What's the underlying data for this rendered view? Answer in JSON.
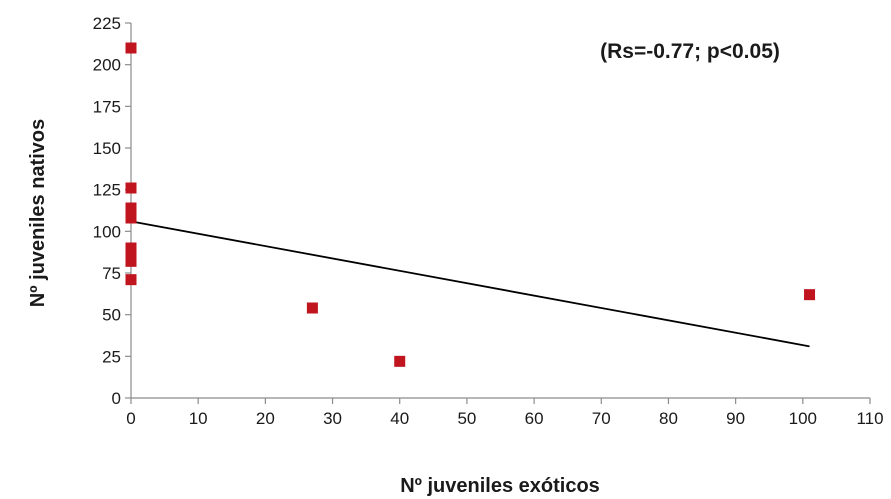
{
  "chart_data": {
    "type": "scatter",
    "title": "",
    "xlabel": "Nº juveniles exóticos",
    "ylabel": "Nº juveniles nativos",
    "xlim": [
      0,
      110
    ],
    "ylim": [
      0,
      225
    ],
    "x_ticks": [
      0,
      10,
      20,
      30,
      40,
      50,
      60,
      70,
      80,
      90,
      100,
      110
    ],
    "y_ticks": [
      0,
      25,
      50,
      75,
      100,
      125,
      150,
      175,
      200,
      225
    ],
    "grid": false,
    "legend": "none",
    "annotation": "(Rs=-0.77; p<0.05)",
    "series": [
      {
        "marker": "square",
        "color": "#c0141e",
        "points": [
          {
            "x": 0,
            "y": 210
          },
          {
            "x": 0,
            "y": 126
          },
          {
            "x": 0,
            "y": 114
          },
          {
            "x": 0,
            "y": 111
          },
          {
            "x": 0,
            "y": 108
          },
          {
            "x": 0,
            "y": 90
          },
          {
            "x": 0,
            "y": 86
          },
          {
            "x": 0,
            "y": 82
          },
          {
            "x": 0,
            "y": 71
          },
          {
            "x": 27,
            "y": 54
          },
          {
            "x": 40,
            "y": 22
          },
          {
            "x": 101,
            "y": 62
          }
        ]
      }
    ],
    "trendline": {
      "color": "#000000",
      "from": {
        "x": 0,
        "y": 106
      },
      "to": {
        "x": 101,
        "y": 31
      }
    }
  }
}
